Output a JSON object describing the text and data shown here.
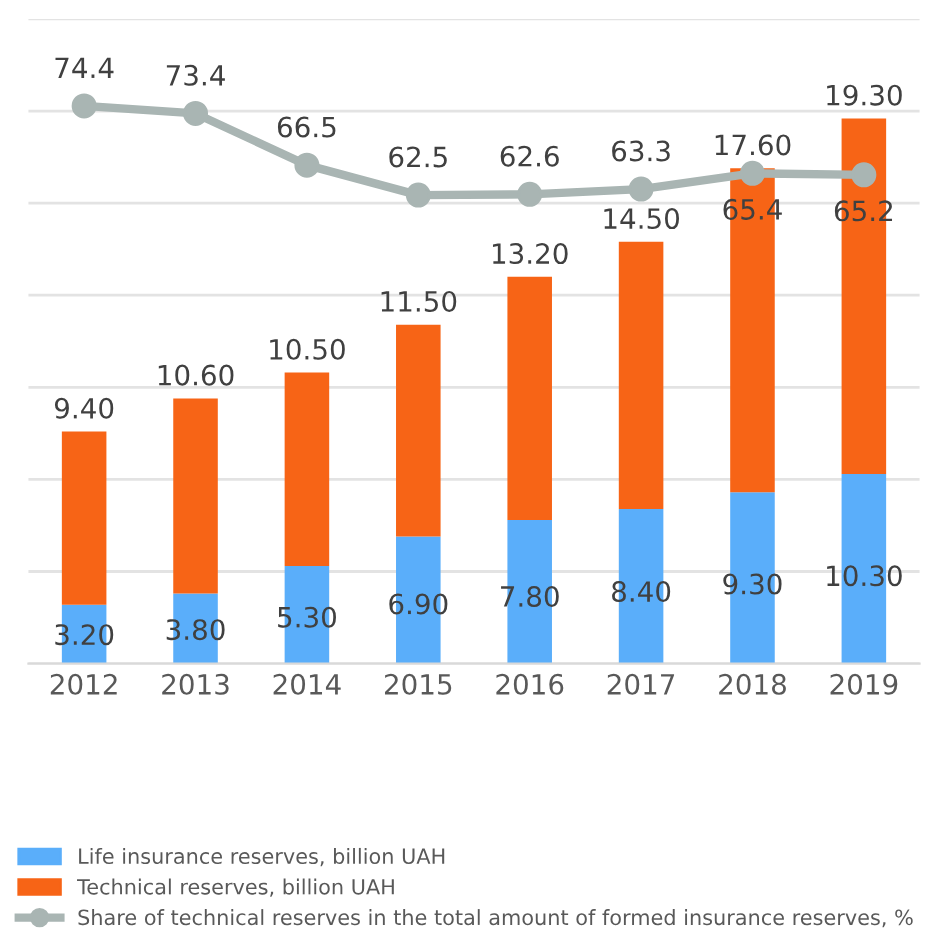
{
  "chart_data": {
    "type": "bar",
    "stacked": true,
    "categories": [
      "2012",
      "2013",
      "2014",
      "2015",
      "2016",
      "2017",
      "2018",
      "2019"
    ],
    "series": [
      {
        "name": "Life insurance reserves, billion UAH",
        "color": "#5aaefa",
        "values": [
          3.2,
          3.8,
          5.3,
          6.9,
          7.8,
          8.4,
          9.3,
          10.3
        ],
        "value_labels": [
          "3.20",
          "3.80",
          "5.30",
          "6.90",
          "7.80",
          "8.40",
          "9.30",
          "10.30"
        ]
      },
      {
        "name": "Technical reserves, billion UAH",
        "color": "#f76416",
        "values": [
          9.4,
          10.6,
          10.5,
          11.5,
          13.2,
          14.5,
          17.6,
          19.3
        ],
        "value_labels": [
          "9.40",
          "10.60",
          "10.50",
          "11.50",
          "13.20",
          "14.50",
          "17.60",
          "19.30"
        ]
      },
      {
        "name": "Share of technical reserves in the total amount of formed insurance reserves, %",
        "type": "line",
        "axis": "y2",
        "color": "#a9b5b3",
        "marker": "circle",
        "values": [
          74.4,
          73.4,
          66.5,
          62.5,
          62.6,
          63.3,
          65.4,
          65.2
        ],
        "value_labels": [
          "74.4",
          "73.4",
          "66.5",
          "62.5",
          "62.6",
          "63.3",
          "65.4",
          "65.2"
        ]
      }
    ],
    "ylim": [
      0,
      35
    ],
    "yticks": [
      {
        "value": 0,
        "label": null
      },
      {
        "value": 5,
        "label": null
      },
      {
        "value": 10,
        "label": null
      },
      {
        "value": 15,
        "label": null
      },
      {
        "value": 20,
        "label": null
      },
      {
        "value": 25,
        "label": null
      },
      {
        "value": 30,
        "label": null
      },
      {
        "value": 35,
        "label": null
      }
    ],
    "y2lim": [
      0,
      86
    ],
    "tick_labels": "x",
    "grid": "y",
    "legend": "bottom"
  }
}
